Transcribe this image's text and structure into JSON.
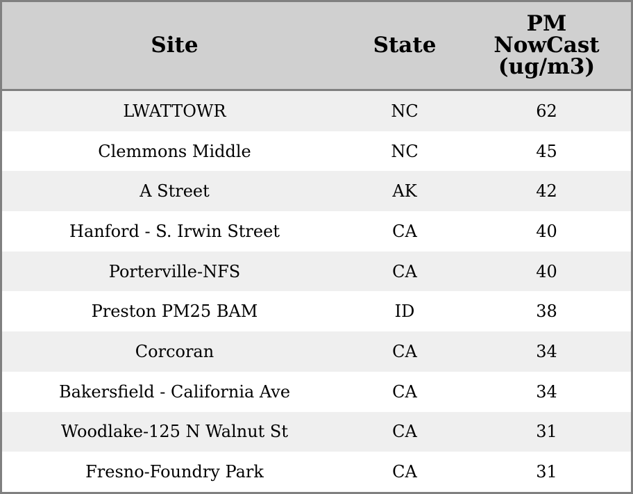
{
  "chart_data": {
    "type": "table",
    "columns": [
      "Site",
      "State",
      "PM NowCast (ug/m3)"
    ],
    "rows": [
      [
        "LWATTOWR",
        "NC",
        "62"
      ],
      [
        "Clemmons Middle",
        "NC",
        "45"
      ],
      [
        "A Street",
        "AK",
        "42"
      ],
      [
        "Hanford - S. Irwin Street",
        "CA",
        "40"
      ],
      [
        "Porterville-NFS",
        "CA",
        "40"
      ],
      [
        "Preston PM25 BAM",
        "ID",
        "38"
      ],
      [
        "Corcoran",
        "CA",
        "34"
      ],
      [
        "Bakersfield - California Ave",
        "CA",
        "34"
      ],
      [
        "Woodlake-125 N Walnut St",
        "CA",
        "31"
      ],
      [
        "Fresno-Foundry Park",
        "CA",
        "31"
      ]
    ]
  },
  "colors": {
    "header_bg": "#d0d0d0",
    "stripe": "#efefef",
    "border": "#808080"
  }
}
